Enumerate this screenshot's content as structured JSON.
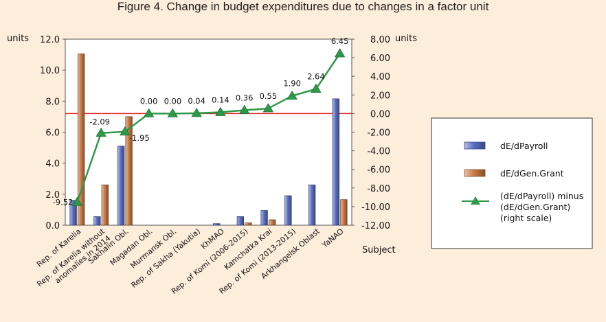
{
  "chart_data": {
    "type": "bar+line",
    "title": "Figure 4. Change in budget expenditures due to changes in a factor unit",
    "left_unit_label": "units",
    "right_unit_label": "units",
    "xlabel": "Subject",
    "left_axis": {
      "min": 0,
      "max": 12,
      "step": 2,
      "tick_labels": [
        "0.0",
        "2.0",
        "4.0",
        "6.0",
        "8.0",
        "10.0",
        "12.0"
      ]
    },
    "right_axis": {
      "min": -12,
      "max": 8,
      "step": 2,
      "tick_labels": [
        "-12.00",
        "-10.00",
        "-8.00",
        "-6.00",
        "-4.00",
        "-2.00",
        "0.00",
        "2.00",
        "4.00",
        "6.00",
        "8.00"
      ]
    },
    "categories": [
      "Rep. of Karelia",
      "Rep. of Karelia without anomalies in 2014",
      "Sakhalin Obl.",
      "Magadan Obl.",
      "Murmansk Obl.",
      "Rep. of Sakha (Yakutia)",
      "KhMAO",
      "Rep. of Komi (2006-2015)",
      "Kamchatka Krai",
      "Rep. of Komi (2013-2015)",
      "Arkhangelsk Oblast",
      "YaNAO"
    ],
    "category_label_lines": [
      [
        "Rep. of Karelia"
      ],
      [
        "Rep. of Karelia without",
        "anomalies in 2014"
      ],
      [
        "Sakhalin Obl."
      ],
      [
        "Magadan Obl."
      ],
      [
        "Murmansk Obl."
      ],
      [
        "Rep. of Sakha (Yakutia)"
      ],
      [
        "KhMAO"
      ],
      [
        "Rep. of Komi (2006-2015)"
      ],
      [
        "Kamchatka Krai"
      ],
      [
        "Rep. of Komi (2013-2015)"
      ],
      [
        "Arkhangelsk Oblast"
      ],
      [
        "YaNAO"
      ]
    ],
    "series": [
      {
        "name": "dE/dPayroll",
        "type": "bar",
        "axis": "left",
        "color": "#5b6fc4",
        "values": [
          1.6,
          0.55,
          5.1,
          0,
          0,
          0,
          0.1,
          0.55,
          0.95,
          1.9,
          2.6,
          8.15
        ]
      },
      {
        "name": "dE/dGen.Grant",
        "type": "bar",
        "axis": "left",
        "color": "#cc7a45",
        "values": [
          11.05,
          2.6,
          7.0,
          0,
          0,
          0,
          0,
          0.15,
          0.35,
          0,
          0,
          1.65
        ]
      },
      {
        "name": "(dE/dPayroll) minus (dE/dGen.Grant) (right scale)",
        "type": "line",
        "axis": "right",
        "color": "#2e9a48",
        "values": [
          -9.52,
          -2.09,
          -1.95,
          0.0,
          0.0,
          0.04,
          0.14,
          0.36,
          0.55,
          1.9,
          2.64,
          6.45
        ],
        "labels": [
          "-9.52",
          "-2.09",
          "-1.95",
          "0.00",
          "0.00",
          "0.04",
          "0.14",
          "0.36",
          "0.55",
          "1.90",
          "2.64",
          "6.45"
        ]
      }
    ],
    "legend": {
      "placement": "right",
      "items": [
        {
          "lines": [
            "dE/dPayroll"
          ]
        },
        {
          "lines": [
            "dE/dGen.Grant"
          ]
        },
        {
          "lines": [
            "(dE/dPayroll) minus",
            "(dE/dGen.Grant)",
            "(right scale)"
          ]
        }
      ]
    },
    "colors": {
      "background": "#fdeedb",
      "plot_background": "#ffffff",
      "zero_line": "#e02020",
      "legend_background": "#ffffff"
    }
  }
}
